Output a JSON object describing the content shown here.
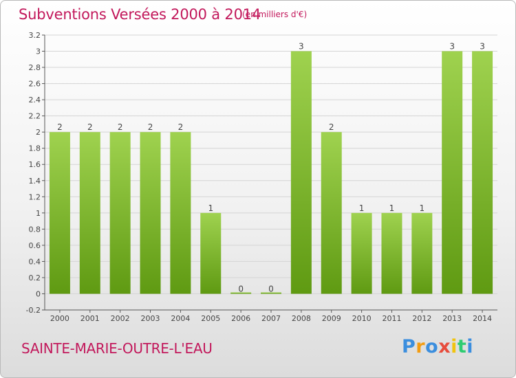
{
  "header": {
    "title": "Subventions Versées 2000 à 2014",
    "subtitle": "(en milliers d'€)"
  },
  "footer": {
    "place": "SAINTE-MARIE-OUTRE-L'EAU",
    "logo_letters": [
      "P",
      "r",
      "o",
      "x",
      "i",
      "t",
      "i"
    ],
    "logo_colors": [
      "#3b8ede",
      "#f39c12",
      "#3b8ede",
      "#e74c3c",
      "#f1c40f",
      "#2ecc71",
      "#3b8ede"
    ]
  },
  "colors": {
    "bar_light": "#9fd24f",
    "bar_dark": "#5f9a12",
    "grid": "#d4d4d4",
    "title": "#c2185b"
  },
  "chart_data": {
    "type": "bar",
    "title": "Subventions Versées 2000 à 2014",
    "subtitle": "(en milliers d'€)",
    "categories": [
      "2000",
      "2001",
      "2002",
      "2003",
      "2004",
      "2005",
      "2006",
      "2007",
      "2008",
      "2009",
      "2010",
      "2011",
      "2012",
      "2013",
      "2014"
    ],
    "values": [
      2,
      2,
      2,
      2,
      2,
      1,
      0,
      0,
      3,
      2,
      1,
      1,
      1,
      3,
      3
    ],
    "data_labels": [
      "2",
      "2",
      "2",
      "2",
      "2",
      "1",
      "0",
      "0",
      "3",
      "2",
      "1",
      "1",
      "1",
      "3",
      "3"
    ],
    "ylim": [
      -0.2,
      3.2
    ],
    "yticks": [
      -0.2,
      0,
      0.2,
      0.4,
      0.6,
      0.8,
      1,
      1.2,
      1.4,
      1.6,
      1.8,
      2,
      2.2,
      2.4,
      2.6,
      2.8,
      3,
      3.2
    ],
    "ytick_labels": [
      "-0.2",
      "0",
      "0.2",
      "0.4",
      "0.6",
      "0.8",
      "1",
      "1.2",
      "1.4",
      "1.6",
      "1.8",
      "2",
      "2.2",
      "2.4",
      "2.6",
      "2.8",
      "3",
      "3.2"
    ],
    "grid": true,
    "legend": "none"
  }
}
